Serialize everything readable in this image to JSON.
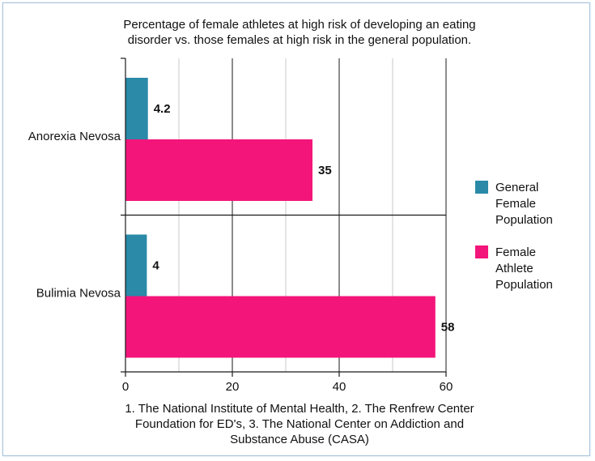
{
  "chart_data": {
    "type": "bar",
    "orientation": "horizontal",
    "title": "Percentage of female athletes at high risk of developing an eating disorder vs. those females at high risk in the general population.",
    "title_lines": [
      "Percentage of female athletes at high risk of developing an eating",
      "disorder vs. those females at high risk in the general population."
    ],
    "categories": [
      "Anorexia Nevosa",
      "Bulimia Nevosa"
    ],
    "series": [
      {
        "name": "General Female Population",
        "values": [
          4.2,
          4
        ],
        "color": "#2a8aa8"
      },
      {
        "name": "Female Athlete Population",
        "values": [
          35,
          58
        ],
        "color": "#f3157a"
      }
    ],
    "legend_lines": [
      [
        "General",
        "Female",
        "Population"
      ],
      [
        "Female",
        "Athlete",
        "Population"
      ]
    ],
    "value_labels": [
      [
        "4.2",
        "4"
      ],
      [
        "35",
        "58"
      ]
    ],
    "xlim": [
      0,
      60
    ],
    "x_ticks": [
      0,
      20,
      40,
      60
    ],
    "x_tick_labels": [
      "0",
      "20",
      "40",
      "60"
    ],
    "minor_gridlines": [
      10,
      30,
      50
    ],
    "grid": true,
    "legend_position": "right",
    "xlabel": "",
    "ylabel": "",
    "caption_lines": [
      "1. The National Institute of Mental Health, 2. The Renfrew Center",
      "Foundation for ED's, 3. The National Center on Addiction and",
      "Substance Abuse (CASA)"
    ]
  }
}
